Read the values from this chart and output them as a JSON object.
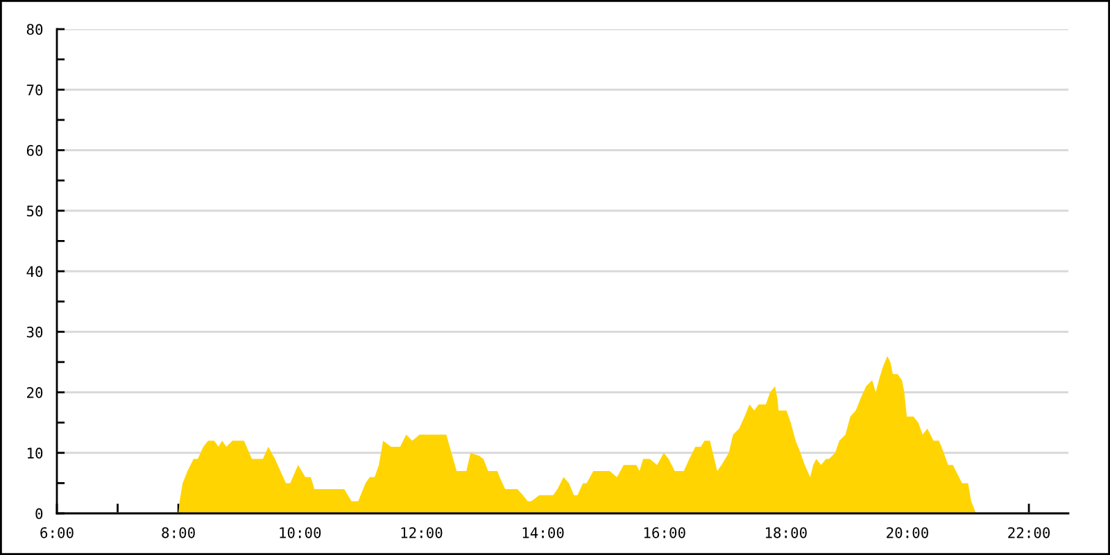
{
  "chart_data": {
    "type": "area",
    "x": [
      8.0,
      8.02,
      8.07,
      8.15,
      8.25,
      8.32,
      8.41,
      8.49,
      8.59,
      8.66,
      8.72,
      8.79,
      8.89,
      9.08,
      9.21,
      9.39,
      9.48,
      9.59,
      9.77,
      9.84,
      9.97,
      10.09,
      10.18,
      10.24,
      10.73,
      10.85,
      10.96,
      11.08,
      11.15,
      11.23,
      11.3,
      11.37,
      11.5,
      11.65,
      11.75,
      11.85,
      11.97,
      12.41,
      12.58,
      12.74,
      12.81,
      12.95,
      13.02,
      13.1,
      13.25,
      13.31,
      13.38,
      13.44,
      13.58,
      13.67,
      13.75,
      13.81,
      13.94,
      14.17,
      14.24,
      14.34,
      14.43,
      14.51,
      14.57,
      14.66,
      14.72,
      14.83,
      15.1,
      15.22,
      15.33,
      15.54,
      15.59,
      15.65,
      15.76,
      15.88,
      15.99,
      16.07,
      16.17,
      16.32,
      16.41,
      16.51,
      16.6,
      16.66,
      16.75,
      16.87,
      16.94,
      17.06,
      17.13,
      17.23,
      17.32,
      17.4,
      17.48,
      17.55,
      17.67,
      17.74,
      17.82,
      17.86,
      17.88,
      17.93,
      18.01,
      18.08,
      18.16,
      18.24,
      18.31,
      18.4,
      18.45,
      18.5,
      18.58,
      18.66,
      18.71,
      18.81,
      18.88,
      18.98,
      19.06,
      19.15,
      19.23,
      19.32,
      19.42,
      19.48,
      19.53,
      19.59,
      19.67,
      19.72,
      19.76,
      19.84,
      19.91,
      19.95,
      19.99,
      20.1,
      20.18,
      20.25,
      20.33,
      20.43,
      20.52,
      20.6,
      20.67,
      20.75,
      20.85,
      20.9,
      21.0,
      21.05,
      21.13
    ],
    "series": [
      {
        "color": "#ffd400",
        "values": [
          0,
          2,
          5,
          7,
          9,
          9,
          11,
          12,
          12,
          11,
          12,
          11,
          12,
          12,
          9,
          9,
          11,
          9,
          5,
          5,
          8,
          6,
          6,
          4,
          4,
          2,
          2,
          5,
          6,
          6,
          8,
          12,
          11,
          11,
          13,
          12,
          13,
          13,
          7,
          7,
          10,
          9.5,
          9,
          7,
          7,
          5.5,
          4,
          4,
          4,
          3,
          2,
          2,
          3,
          3,
          4,
          6,
          5,
          3,
          3,
          5,
          5,
          7,
          7,
          6,
          8,
          8,
          7,
          9,
          9,
          8,
          10,
          9,
          7,
          7,
          9,
          11,
          11,
          12,
          12,
          7,
          8,
          10,
          13,
          14,
          16,
          18,
          17,
          18,
          18,
          20,
          21,
          19,
          17,
          17,
          17,
          15,
          12,
          10,
          8,
          6,
          8,
          9,
          8,
          9,
          9,
          10,
          12,
          13,
          16,
          17,
          19,
          21,
          22,
          20,
          22,
          24,
          26,
          25,
          23,
          23,
          22,
          20,
          16,
          16,
          15,
          13,
          14,
          12,
          12,
          10,
          8,
          8,
          6,
          5,
          5,
          2,
          0
        ]
      }
    ],
    "xlim": [
      6,
      22.65
    ],
    "ylim": [
      0,
      80
    ],
    "xticks": [
      {
        "value": 6,
        "label": "6:00"
      },
      {
        "value": 7,
        "label": null
      },
      {
        "value": 8,
        "label": "8:00"
      },
      {
        "value": 9,
        "label": null
      },
      {
        "value": 10,
        "label": "10:00"
      },
      {
        "value": 11,
        "label": null
      },
      {
        "value": 12,
        "label": "12:00"
      },
      {
        "value": 13,
        "label": null
      },
      {
        "value": 14,
        "label": "14:00"
      },
      {
        "value": 15,
        "label": null
      },
      {
        "value": 16,
        "label": "16:00"
      },
      {
        "value": 17,
        "label": null
      },
      {
        "value": 18,
        "label": "18:00"
      },
      {
        "value": 19,
        "label": null
      },
      {
        "value": 20,
        "label": "20:00"
      },
      {
        "value": 21,
        "label": null
      },
      {
        "value": 22,
        "label": "22:00"
      }
    ],
    "yticks": [
      0,
      {
        "value": 5,
        "label": null
      },
      10,
      {
        "value": 15,
        "label": null
      },
      20,
      {
        "value": 25,
        "label": null
      },
      30,
      {
        "value": 35,
        "label": null
      },
      40,
      {
        "value": 45,
        "label": null
      },
      50,
      {
        "value": 55,
        "label": null
      },
      60,
      {
        "value": 65,
        "label": null
      },
      70,
      {
        "value": 75,
        "label": null
      },
      80
    ],
    "grid": "y"
  }
}
